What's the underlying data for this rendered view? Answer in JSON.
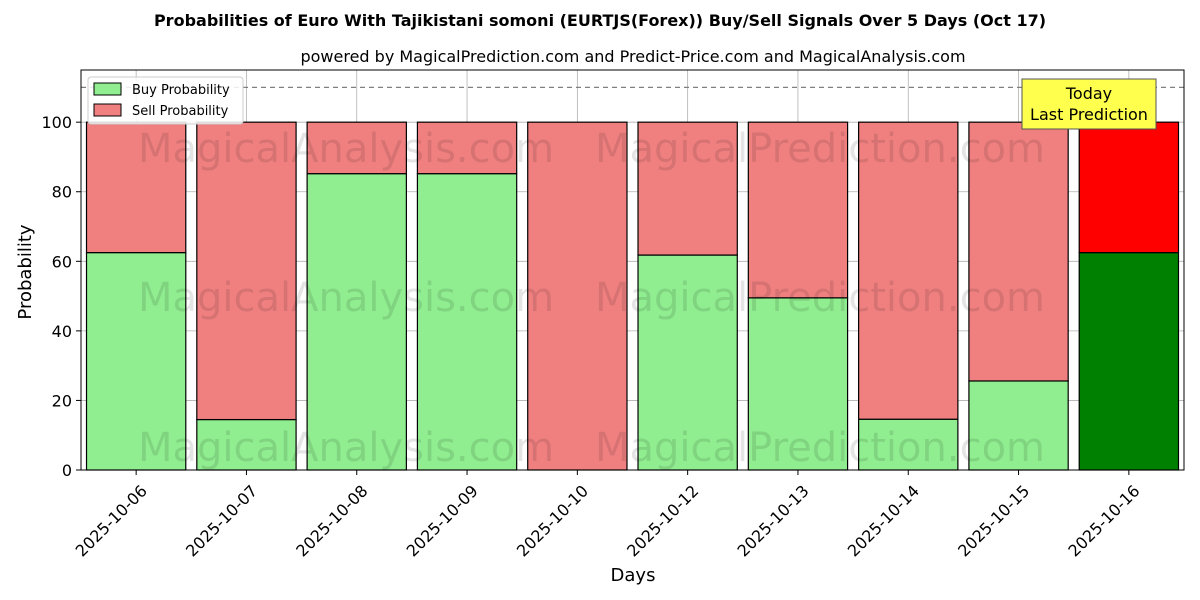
{
  "chart_data": {
    "type": "bar",
    "stacked": true,
    "title": "Probabilities of Euro With Tajikistani somoni (EURTJS(Forex)) Buy/Sell Signals Over 5 Days (Oct 17)",
    "subtitle": "powered by MagicalPrediction.com and Predict-Price.com and MagicalAnalysis.com",
    "xlabel": "Days",
    "ylabel": "Probability",
    "ylim": [
      0,
      115
    ],
    "yticks": [
      0,
      20,
      40,
      60,
      80,
      100
    ],
    "grid": true,
    "legend_position": "top-left",
    "reference_line": 110,
    "categories": [
      "2025-10-06",
      "2025-10-07",
      "2025-10-08",
      "2025-10-09",
      "2025-10-10",
      "2025-10-12",
      "2025-10-13",
      "2025-10-14",
      "2025-10-15",
      "2025-10-16"
    ],
    "series": [
      {
        "name": "Buy Probability",
        "values": [
          62.5,
          14.5,
          85.2,
          85.2,
          0,
          61.8,
          49.5,
          14.6,
          25.6,
          62.5
        ],
        "color": "#90ee90",
        "highlight_color": "#008000"
      },
      {
        "name": "Sell Probability",
        "values": [
          37.5,
          85.5,
          14.8,
          14.8,
          100,
          38.2,
          50.5,
          85.4,
          74.4,
          37.5
        ],
        "color": "#f08080",
        "highlight_color": "#ff0000"
      }
    ],
    "highlight_index": 9,
    "annotation": {
      "line1": "Today",
      "line2": "Last Prediction",
      "background": "#ffff4d"
    },
    "watermarks": [
      "MagicalAnalysis.com",
      "MagicalPrediction.com"
    ]
  }
}
